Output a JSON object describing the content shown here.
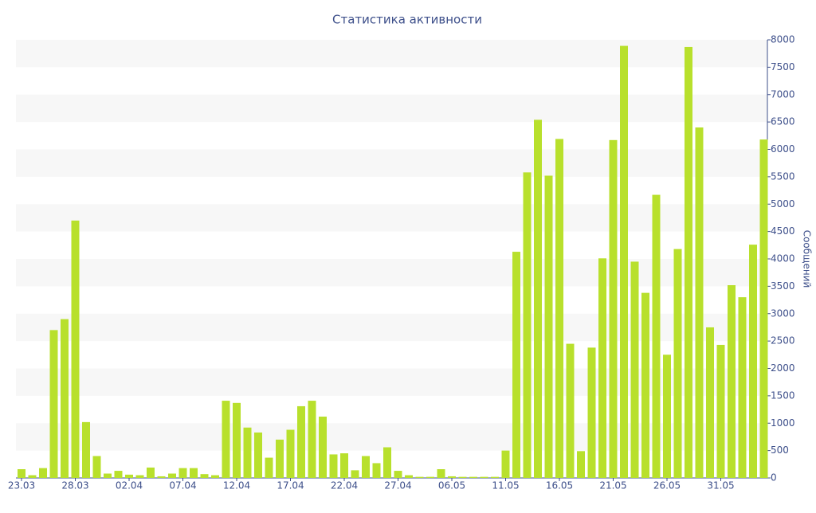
{
  "chart_data": {
    "type": "bar",
    "title": "Статистика активности",
    "y_label": "Сообщений",
    "categories": [
      "23.03",
      null,
      null,
      null,
      null,
      "28.03",
      null,
      null,
      null,
      null,
      "02.04",
      null,
      null,
      null,
      null,
      "07.04",
      null,
      null,
      null,
      null,
      "12.04",
      null,
      null,
      null,
      null,
      "17.04",
      null,
      null,
      null,
      null,
      "22.04",
      null,
      null,
      null,
      null,
      "27.04",
      null,
      null,
      null,
      null,
      "06.05",
      null,
      null,
      null,
      null,
      "11.05",
      null,
      null,
      null,
      null,
      "16.05",
      null,
      null,
      null,
      null,
      "21.05",
      null,
      null,
      null,
      null,
      "26.05",
      null,
      null,
      null,
      null,
      "31.05",
      null,
      null,
      null,
      null
    ],
    "values": [
      160,
      50,
      180,
      2700,
      2900,
      4700,
      1020,
      400,
      80,
      130,
      60,
      50,
      190,
      30,
      80,
      180,
      180,
      70,
      50,
      1410,
      1370,
      920,
      830,
      370,
      700,
      880,
      1310,
      1410,
      1120,
      430,
      450,
      140,
      400,
      270,
      560,
      130,
      50,
      20,
      20,
      160,
      30,
      20,
      20,
      20,
      20,
      500,
      4130,
      5580,
      6540,
      5520,
      6190,
      2450,
      490,
      2380,
      4010,
      6170,
      7890,
      3950,
      3380,
      5170,
      2250,
      4180,
      7870,
      6400,
      2750,
      2430,
      3520,
      3300,
      4260,
      6180
    ],
    "color": "#b8e02c",
    "ylim": [
      0,
      8000
    ],
    "yticks": [
      0,
      500,
      1000,
      1500,
      2000,
      2500,
      3000,
      3500,
      4000,
      4500,
      5000,
      5500,
      6000,
      6500,
      7000,
      7500,
      8000
    ],
    "grid": true
  }
}
